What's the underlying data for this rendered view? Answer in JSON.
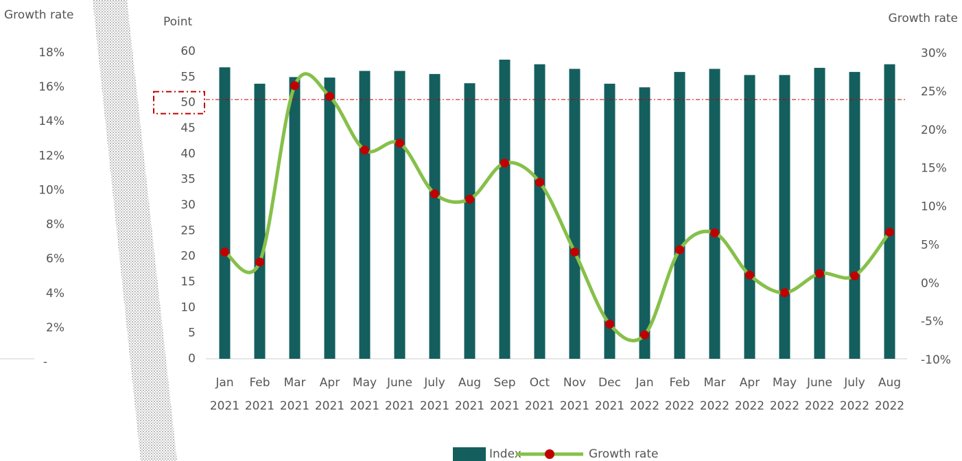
{
  "chart_data": {
    "type": "bar_line",
    "ylabel": "Point",
    "y2label": "Growth rate",
    "y3label": "Growth rate",
    "categories": [
      "Jan 2021",
      "Feb 2021",
      "Mar 2021",
      "Apr 2021",
      "May 2021",
      "June 2021",
      "July 2021",
      "Aug 2021",
      "Sep 2021",
      "Oct 2021",
      "Nov 2021",
      "Dec 2021",
      "Jan 2022",
      "Feb 2022",
      "Mar 2022",
      "Apr 2022",
      "May 2022",
      "June 2022",
      "July 2022",
      "Aug 2022"
    ],
    "series": [
      {
        "name": "Index",
        "type": "bar",
        "color": "#155e5e",
        "values": [
          56.9,
          53.7,
          55.0,
          54.9,
          56.2,
          56.2,
          55.6,
          53.8,
          58.4,
          57.5,
          56.6,
          53.7,
          53.0,
          56.0,
          56.6,
          55.4,
          55.4,
          56.8,
          56.0,
          57.5
        ]
      },
      {
        "name": "Growth rate",
        "type": "line",
        "axis": "y2",
        "color": "#86c04a",
        "marker_color": "#c00000",
        "values": [
          4.1,
          2.8,
          25.8,
          24.4,
          17.4,
          18.3,
          11.7,
          11.0,
          15.7,
          13.2,
          4.1,
          -5.3,
          -6.7,
          4.4,
          6.6,
          1.1,
          -1.2,
          1.3,
          1.0,
          6.7
        ]
      }
    ],
    "ylim": [
      0,
      60
    ],
    "yticks": [
      0,
      5,
      10,
      15,
      20,
      25,
      30,
      35,
      40,
      45,
      50,
      55,
      60
    ],
    "y2lim": [
      -10,
      30
    ],
    "y2ticks": [
      {
        "value": -10,
        "label": "-10%"
      },
      {
        "value": -5,
        "label": "-5%"
      },
      {
        "value": 0,
        "label": "0%"
      },
      {
        "value": 5,
        "label": "5%"
      },
      {
        "value": 10,
        "label": "10%"
      },
      {
        "value": 15,
        "label": "15%"
      },
      {
        "value": 20,
        "label": "20%"
      },
      {
        "value": 25,
        "label": "25%"
      },
      {
        "value": 30,
        "label": "30%"
      }
    ],
    "y3lim": [
      0,
      18
    ],
    "y3ticks": [
      {
        "value": 0,
        "label": "-"
      },
      {
        "value": 2,
        "label": "2%"
      },
      {
        "value": 4,
        "label": "4%"
      },
      {
        "value": 6,
        "label": "6%"
      },
      {
        "value": 8,
        "label": "8%"
      },
      {
        "value": 10,
        "label": "10%"
      },
      {
        "value": 12,
        "label": "12%"
      },
      {
        "value": 14,
        "label": "14%"
      },
      {
        "value": 16,
        "label": "16%"
      },
      {
        "value": 18,
        "label": "18%"
      }
    ],
    "reference_line": 50.6,
    "highlight_tick": 10,
    "legend": "bottom"
  }
}
